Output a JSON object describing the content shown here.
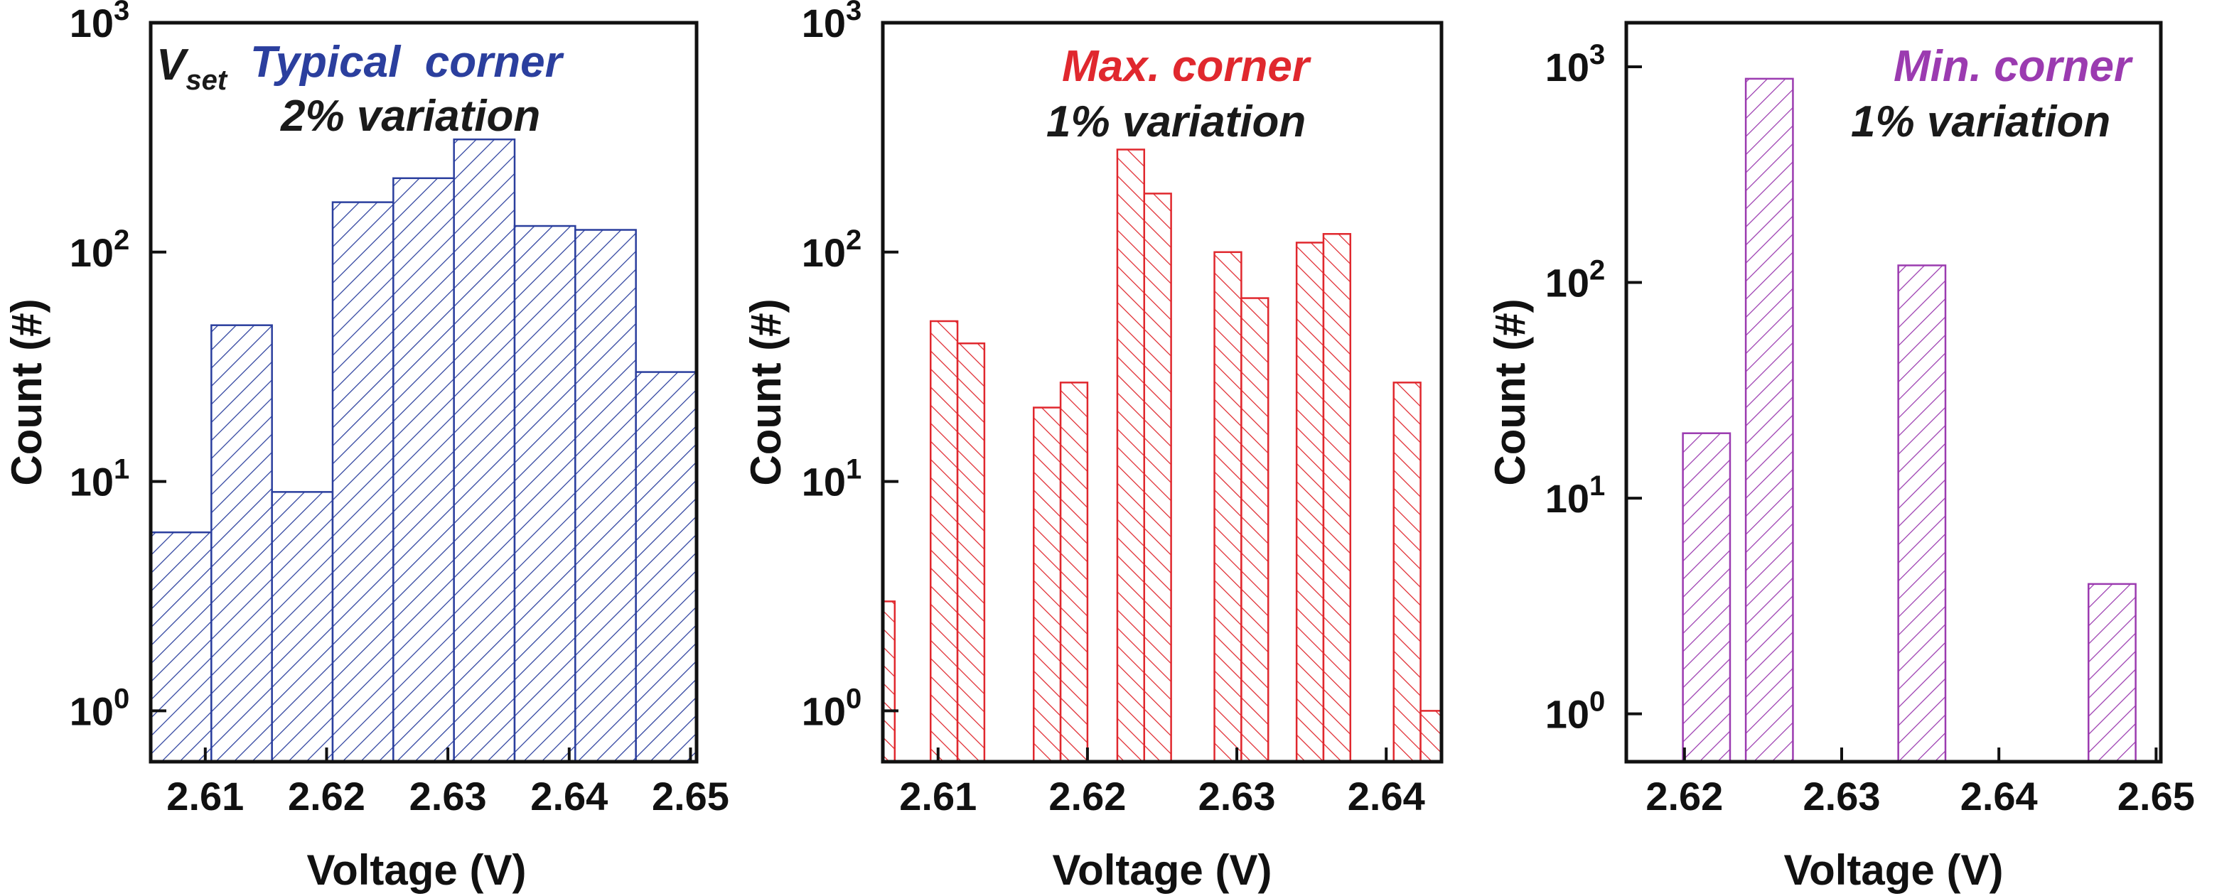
{
  "chart_data": [
    {
      "type": "bar",
      "title": "",
      "xlabel": "Voltage (V)",
      "ylabel": "Count (#)",
      "yscale": "log",
      "ylim": [
        0.6,
        1000
      ],
      "xlim": [
        2.6055,
        2.6505
      ],
      "x_ticks": [
        "2.61",
        "2.62",
        "2.63",
        "2.64",
        "2.65"
      ],
      "x_tick_values": [
        2.61,
        2.62,
        2.63,
        2.64,
        2.65
      ],
      "y_ticks": [
        {
          "base": "10",
          "exp": "0"
        },
        {
          "base": "10",
          "exp": "1"
        },
        {
          "base": "10",
          "exp": "2"
        },
        {
          "base": "10",
          "exp": "3"
        }
      ],
      "y_tick_values": [
        1,
        10,
        100,
        1000
      ],
      "color": "#2b3f9e",
      "hatch": "forward",
      "annotation": {
        "symbol_main": "V",
        "symbol_sub": "set",
        "corner_text": "Typical  corner",
        "variation_text": "2% variation",
        "corner_color": "#2b3f9e",
        "variation_color": "#1a1a1a"
      },
      "bins": [
        {
          "x0": 2.6055,
          "x1": 2.6105,
          "value": 6
        },
        {
          "x0": 2.6105,
          "x1": 2.6155,
          "value": 48
        },
        {
          "x0": 2.6155,
          "x1": 2.6205,
          "value": 9
        },
        {
          "x0": 2.6205,
          "x1": 2.6255,
          "value": 165
        },
        {
          "x0": 2.6255,
          "x1": 2.6305,
          "value": 210
        },
        {
          "x0": 2.6305,
          "x1": 2.6355,
          "value": 310
        },
        {
          "x0": 2.6355,
          "x1": 2.6405,
          "value": 130
        },
        {
          "x0": 2.6405,
          "x1": 2.6455,
          "value": 125
        },
        {
          "x0": 2.6455,
          "x1": 2.6505,
          "value": 30
        }
      ]
    },
    {
      "type": "bar",
      "title": "",
      "xlabel": "Voltage (V)",
      "ylabel": "Count (#)",
      "yscale": "log",
      "ylim": [
        0.6,
        1000
      ],
      "xlim": [
        2.6063,
        2.6437
      ],
      "x_ticks": [
        "2.61",
        "2.62",
        "2.63",
        "2.64"
      ],
      "x_tick_values": [
        2.61,
        2.62,
        2.63,
        2.64
      ],
      "y_ticks": [
        {
          "base": "10",
          "exp": "0"
        },
        {
          "base": "10",
          "exp": "1"
        },
        {
          "base": "10",
          "exp": "2"
        },
        {
          "base": "10",
          "exp": "3"
        }
      ],
      "y_tick_values": [
        1,
        10,
        100,
        1000
      ],
      "color": "#e0282e",
      "hatch": "backward",
      "annotation": {
        "corner_text": "Max. corner",
        "variation_text": "1% variation",
        "corner_color": "#e0282e",
        "variation_color": "#1a1a1a"
      },
      "bins": [
        {
          "x0": 2.6063,
          "x1": 2.6071,
          "value": 3
        },
        {
          "x0": 2.6095,
          "x1": 2.6113,
          "value": 50
        },
        {
          "x0": 2.6113,
          "x1": 2.6131,
          "value": 40
        },
        {
          "x0": 2.6164,
          "x1": 2.6182,
          "value": 21
        },
        {
          "x0": 2.6182,
          "x1": 2.62,
          "value": 27
        },
        {
          "x0": 2.622,
          "x1": 2.6238,
          "value": 280
        },
        {
          "x0": 2.6238,
          "x1": 2.6256,
          "value": 180
        },
        {
          "x0": 2.6285,
          "x1": 2.6303,
          "value": 100
        },
        {
          "x0": 2.6303,
          "x1": 2.6321,
          "value": 63
        },
        {
          "x0": 2.634,
          "x1": 2.6358,
          "value": 110
        },
        {
          "x0": 2.6358,
          "x1": 2.6376,
          "value": 120
        },
        {
          "x0": 2.6405,
          "x1": 2.6423,
          "value": 27
        },
        {
          "x0": 2.6423,
          "x1": 2.6437,
          "value": 1
        }
      ]
    },
    {
      "type": "bar",
      "title": "",
      "xlabel": "Voltage (V)",
      "ylabel": "Count (#)",
      "yscale": "log",
      "ylim": [
        0.6,
        1600
      ],
      "xlim": [
        2.6163,
        2.6503
      ],
      "x_ticks": [
        "2.62",
        "2.63",
        "2.64",
        "2.65"
      ],
      "x_tick_values": [
        2.62,
        2.63,
        2.64,
        2.65
      ],
      "y_ticks": [
        {
          "base": "10",
          "exp": "0"
        },
        {
          "base": "10",
          "exp": "1"
        },
        {
          "base": "10",
          "exp": "2"
        },
        {
          "base": "10",
          "exp": "3"
        }
      ],
      "y_tick_values": [
        1,
        10,
        100,
        1000
      ],
      "color": "#9b3bb0",
      "hatch": "forward",
      "annotation": {
        "corner_text": "Min. corner",
        "variation_text": "1% variation",
        "corner_color": "#9b3bb0",
        "variation_color": "#1a1a1a"
      },
      "bins": [
        {
          "x0": 2.6199,
          "x1": 2.6229,
          "value": 20
        },
        {
          "x0": 2.6239,
          "x1": 2.6269,
          "value": 880
        },
        {
          "x0": 2.6336,
          "x1": 2.6366,
          "value": 120
        },
        {
          "x0": 2.6457,
          "x1": 2.6487,
          "value": 4
        }
      ]
    }
  ]
}
